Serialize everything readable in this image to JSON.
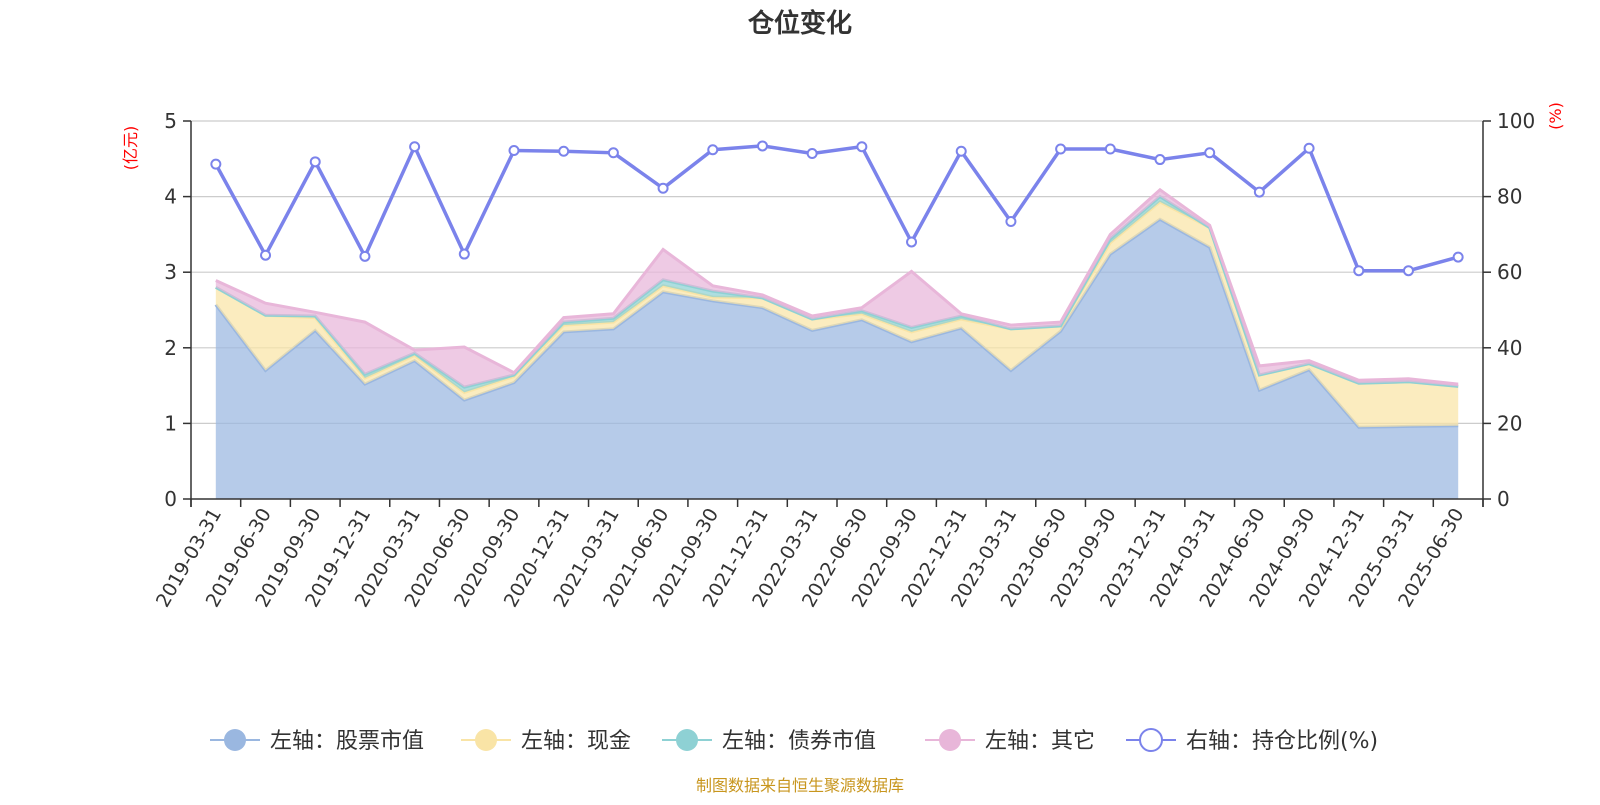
{
  "chart_data": {
    "type": "area",
    "title": "仓位变化",
    "ylabel_left": "(亿元)",
    "ylabel_right": "(%)",
    "ylim_left": [
      0,
      5
    ],
    "ylim_right": [
      0,
      100
    ],
    "yticks_left": [
      "0",
      "1",
      "2",
      "3",
      "4",
      "5"
    ],
    "yticks_right": [
      "0",
      "20",
      "40",
      "60",
      "80",
      "100"
    ],
    "grid": true,
    "legend_position": "bottom",
    "x": [
      "2019-03-31",
      "2019-06-30",
      "2019-09-30",
      "2019-12-31",
      "2020-03-31",
      "2020-06-30",
      "2020-09-30",
      "2020-12-31",
      "2021-03-31",
      "2021-06-30",
      "2021-09-30",
      "2021-12-31",
      "2022-03-31",
      "2022-06-30",
      "2022-09-30",
      "2022-12-31",
      "2023-03-31",
      "2023-06-30",
      "2023-09-30",
      "2023-12-31",
      "2024-03-31",
      "2024-06-30",
      "2024-09-30",
      "2024-12-31",
      "2025-03-31",
      "2025-06-30"
    ],
    "series": [
      {
        "name": "左轴：股票市值",
        "axis": "left",
        "stacked": true,
        "color": "#9ab7e0",
        "values": [
          2.57,
          1.7,
          2.23,
          1.52,
          1.83,
          1.31,
          1.54,
          2.21,
          2.25,
          2.74,
          2.62,
          2.53,
          2.23,
          2.37,
          2.08,
          2.26,
          1.7,
          2.22,
          3.24,
          3.7,
          3.33,
          1.44,
          1.71,
          0.95,
          0.96,
          0.97
        ]
      },
      {
        "name": "左轴：现金",
        "axis": "left",
        "stacked": true,
        "color": "#f9e4a6",
        "values": [
          0.23,
          0.73,
          0.17,
          0.08,
          0.07,
          0.1,
          0.08,
          0.09,
          0.09,
          0.08,
          0.05,
          0.13,
          0.15,
          0.08,
          0.13,
          0.12,
          0.55,
          0.07,
          0.15,
          0.23,
          0.26,
          0.2,
          0.08,
          0.58,
          0.59,
          0.52
        ]
      },
      {
        "name": "左轴：债券市值",
        "axis": "left",
        "stacked": true,
        "color": "#8ed1d4",
        "values": [
          0.0,
          0.0,
          0.02,
          0.05,
          0.03,
          0.07,
          0.02,
          0.04,
          0.05,
          0.08,
          0.08,
          0.0,
          0.0,
          0.04,
          0.06,
          0.04,
          0.0,
          0.0,
          0.05,
          0.07,
          0.0,
          0.0,
          0.0,
          0.0,
          0.0,
          0.0
        ]
      },
      {
        "name": "左轴：其它",
        "axis": "left",
        "stacked": true,
        "color": "#e8b6d9",
        "values": [
          0.09,
          0.16,
          0.05,
          0.69,
          0.04,
          0.53,
          0.03,
          0.06,
          0.06,
          0.4,
          0.07,
          0.04,
          0.04,
          0.04,
          0.74,
          0.03,
          0.05,
          0.05,
          0.06,
          0.09,
          0.03,
          0.12,
          0.04,
          0.04,
          0.04,
          0.03
        ]
      },
      {
        "name": "右轴：持仓比例(%)",
        "axis": "right",
        "type": "line",
        "color": "#7b83eb",
        "values": [
          88.6,
          64.5,
          89.2,
          64.2,
          93.2,
          64.8,
          92.2,
          92.0,
          91.6,
          82.2,
          92.4,
          93.4,
          91.4,
          93.2,
          68.0,
          92.0,
          73.4,
          92.6,
          92.6,
          89.8,
          91.6,
          81.2,
          92.8,
          60.4,
          60.4,
          64.0
        ]
      }
    ]
  },
  "source_note": "制图数据来自恒生聚源数据库"
}
